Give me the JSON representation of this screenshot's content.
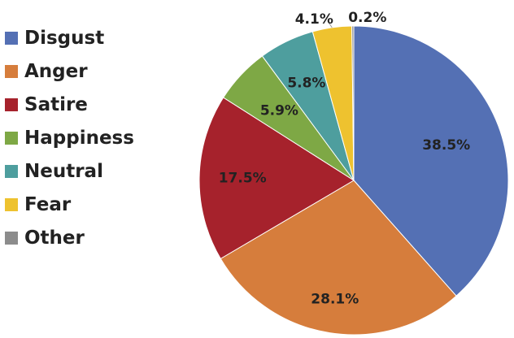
{
  "chart_data": {
    "type": "pie",
    "legend_position": "left",
    "slices": [
      {
        "label": "Disgust",
        "value": 38.5,
        "display": "38.5%",
        "color": "#5470B4"
      },
      {
        "label": "Anger",
        "value": 28.1,
        "display": "28.1%",
        "color": "#D67D3C"
      },
      {
        "label": "Satire",
        "value": 17.5,
        "display": "17.5%",
        "color": "#A6222C"
      },
      {
        "label": "Happiness",
        "value": 5.9,
        "display": "5.9%",
        "color": "#7EA845"
      },
      {
        "label": "Neutral",
        "value": 5.8,
        "display": "5.8%",
        "color": "#4E9E9E"
      },
      {
        "label": "Fear",
        "value": 4.1,
        "display": "4.1%",
        "color": "#EEC22F"
      },
      {
        "label": "Other",
        "value": 0.2,
        "display": "0.2%",
        "color": "#8C8C8C"
      }
    ]
  }
}
